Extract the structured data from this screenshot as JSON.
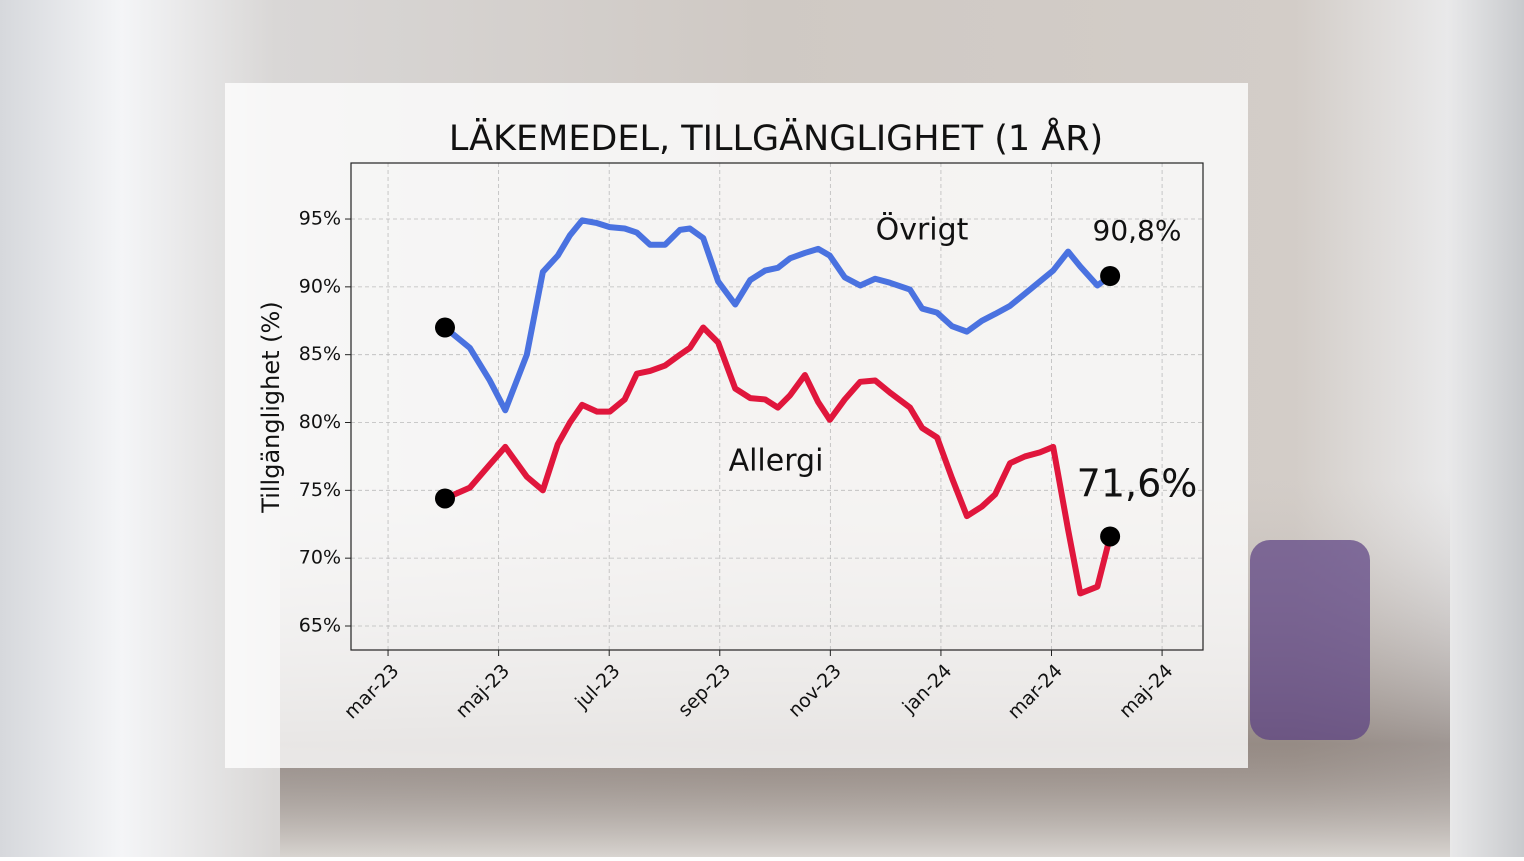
{
  "chart_data": {
    "type": "line",
    "title": "LÄKEMEDEL, TILLGÄNGLIGHET (1 ÅR)",
    "y_label": "Tillgänglighet (%)",
    "x": [
      1.03,
      1.48,
      1.84,
      2.12,
      2.51,
      2.8,
      3.07,
      3.29,
      3.51,
      3.78,
      4.01,
      4.28,
      4.5,
      4.74,
      5.01,
      5.28,
      5.46,
      5.7,
      5.97,
      6.28,
      6.55,
      6.82,
      7.05,
      7.27,
      7.54,
      7.78,
      7.99,
      8.26,
      8.54,
      8.81,
      9.08,
      9.44,
      9.66,
      9.93,
      10.2,
      10.47,
      10.74,
      10.98,
      11.25,
      11.52,
      11.79,
      12.03,
      12.3,
      12.52,
      12.83,
      13.06
    ],
    "series": [
      {
        "name": "Övrigt",
        "color": "#4a72e0",
        "end_label": "90,8%",
        "values": [
          87.0,
          85.5,
          83.1,
          80.9,
          85.0,
          91.1,
          92.3,
          93.8,
          94.9,
          94.7,
          94.4,
          94.3,
          94.0,
          93.1,
          93.1,
          94.2,
          94.3,
          93.6,
          90.4,
          88.7,
          90.5,
          91.2,
          91.4,
          92.1,
          92.5,
          92.8,
          92.3,
          90.7,
          90.1,
          90.6,
          90.3,
          89.8,
          88.4,
          88.1,
          87.1,
          86.7,
          87.5,
          88.0,
          88.6,
          89.5,
          90.4,
          91.2,
          92.6,
          91.5,
          90.1,
          90.8
        ]
      },
      {
        "name": "Allergi",
        "color": "#e0163c",
        "end_label": "71,6%",
        "values": [
          74.4,
          75.2,
          76.9,
          78.2,
          76.0,
          75.0,
          78.4,
          80.0,
          81.3,
          80.8,
          80.8,
          81.7,
          83.6,
          83.8,
          84.2,
          85.0,
          85.5,
          87.0,
          85.9,
          82.5,
          81.8,
          81.7,
          81.1,
          82.0,
          83.5,
          81.5,
          80.2,
          81.7,
          83.0,
          83.1,
          82.2,
          81.1,
          79.6,
          78.9,
          75.9,
          73.1,
          73.8,
          74.7,
          77.0,
          77.5,
          77.8,
          78.2,
          72.1,
          67.4,
          67.9,
          71.6
        ]
      }
    ],
    "xlim": [
      -0.67,
      14.74
    ],
    "xticks": [
      {
        "value": 0,
        "label": "mar-23"
      },
      {
        "value": 2,
        "label": "maj-23"
      },
      {
        "value": 4,
        "label": "jul-23"
      },
      {
        "value": 6,
        "label": "sep-23"
      },
      {
        "value": 8,
        "label": "nov-23"
      },
      {
        "value": 10,
        "label": "jan-24"
      },
      {
        "value": 12,
        "label": "mar-24"
      },
      {
        "value": 14,
        "label": "maj-24"
      }
    ],
    "ylim": [
      63.23,
      99.13
    ],
    "yticks": [
      {
        "value": 65,
        "label": "65%"
      },
      {
        "value": 70,
        "label": "70%"
      },
      {
        "value": 75,
        "label": "75%"
      },
      {
        "value": 80,
        "label": "80%"
      },
      {
        "value": 85,
        "label": "85%"
      },
      {
        "value": 90,
        "label": "90%"
      },
      {
        "value": 95,
        "label": "95%"
      }
    ],
    "grid": true
  }
}
